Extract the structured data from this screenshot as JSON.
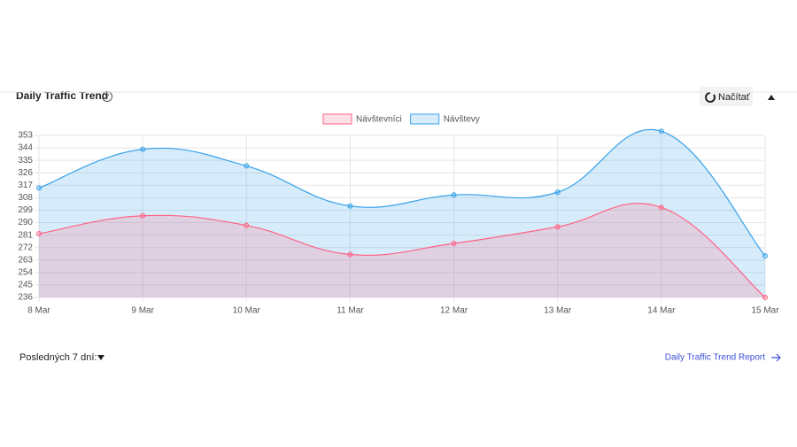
{
  "header": {
    "title": "Daily Traffic Trend",
    "button": "Načítať"
  },
  "chart_data": {
    "type": "line",
    "categories": [
      "8 Mar",
      "9 Mar",
      "10 Mar",
      "11 Mar",
      "12 Mar",
      "13 Mar",
      "14 Mar",
      "15 Mar"
    ],
    "series": [
      {
        "name": "Návštevníci",
        "color": "#ff6384",
        "values": [
          282,
          295,
          288,
          267,
          275,
          287,
          301,
          236
        ]
      },
      {
        "name": "Návštevy",
        "color": "#36a2eb",
        "values": [
          315,
          343,
          331,
          302,
          310,
          312,
          356,
          266
        ]
      }
    ],
    "ylim": [
      236,
      353
    ],
    "yticks": [
      236,
      245,
      254,
      263,
      272,
      281,
      290,
      299,
      308,
      317,
      326,
      335,
      344,
      353
    ],
    "grid": true,
    "legend": "top",
    "fill": true
  },
  "footer": {
    "period": "Posledných 7 dní:",
    "link": "Daily Traffic Trend Report"
  }
}
